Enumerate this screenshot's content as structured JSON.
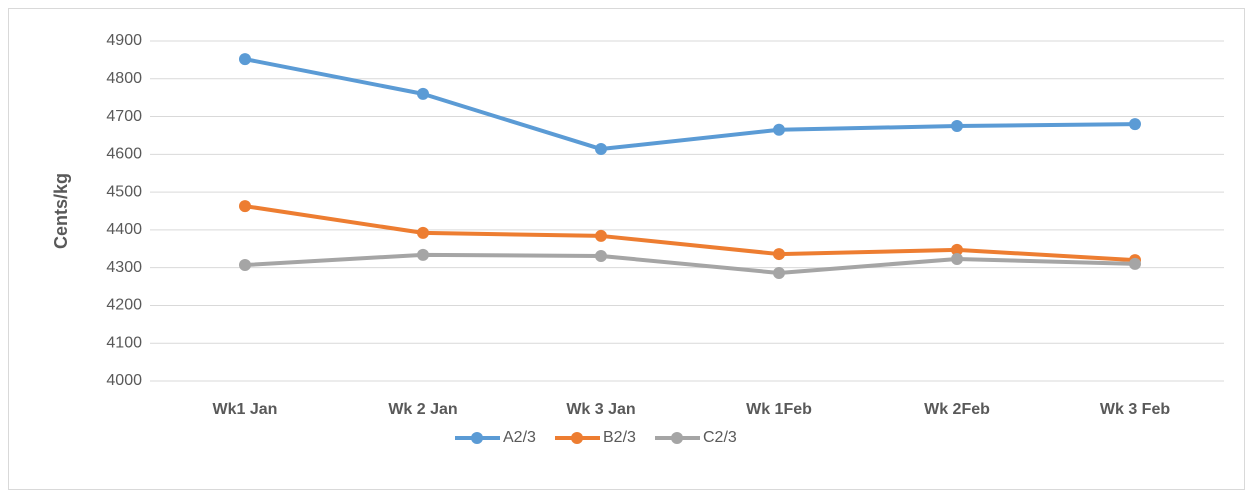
{
  "chart_data": {
    "type": "line",
    "y_label": "Cents/kg",
    "categories": [
      "Wk1 Jan",
      "Wk 2 Jan",
      "Wk 3 Jan",
      "Wk 1Feb",
      "Wk 2Feb",
      "Wk 3 Feb"
    ],
    "series": [
      {
        "name": "A2/3",
        "color": "#5b9bd5",
        "values": [
          4852,
          4760,
          4614,
          4665,
          4675,
          4680
        ]
      },
      {
        "name": "B2/3",
        "color": "#ed7d31",
        "values": [
          4463,
          4392,
          4384,
          4336,
          4347,
          4320
        ]
      },
      {
        "name": "C2/3",
        "color": "#a5a5a5",
        "values": [
          4307,
          4334,
          4331,
          4286,
          4323,
          4310
        ]
      }
    ],
    "ylim": [
      4000,
      4900
    ],
    "yticks": [
      4000,
      4100,
      4200,
      4300,
      4400,
      4500,
      4600,
      4700,
      4800,
      4900
    ],
    "grid": true,
    "legend": "bottom"
  }
}
